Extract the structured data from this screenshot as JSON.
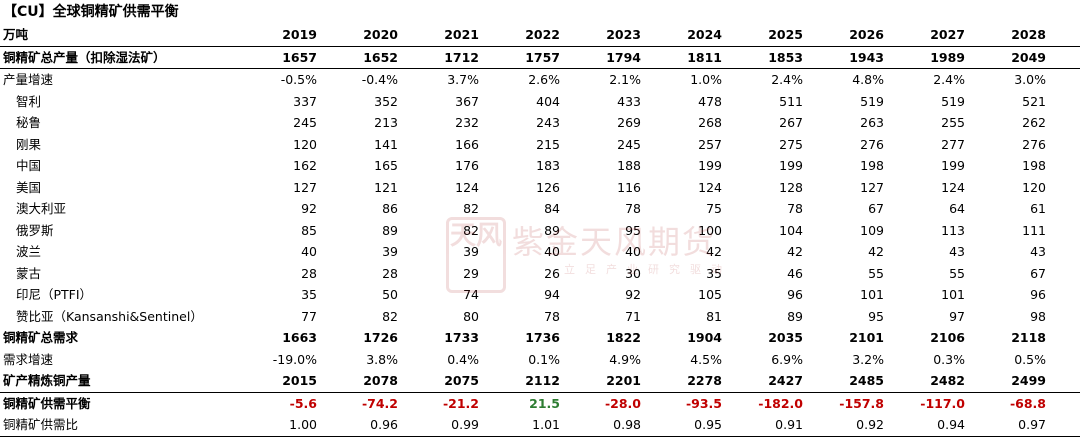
{
  "title": "【CU】全球铜精矿供需平衡",
  "unit_label": "万吨",
  "years": [
    "2019",
    "2020",
    "2021",
    "2022",
    "2023",
    "2024",
    "2025",
    "2026",
    "2027",
    "2028"
  ],
  "rows": [
    {
      "label": "铜精矿总产量（扣除湿法矿）",
      "style": "bold",
      "values": [
        "1657",
        "1652",
        "1712",
        "1757",
        "1794",
        "1811",
        "1853",
        "1943",
        "1989",
        "2049"
      ]
    },
    {
      "label": "产量增速",
      "style": "plain",
      "values": [
        "-0.5%",
        "-0.4%",
        "3.7%",
        "2.6%",
        "2.1%",
        "1.0%",
        "2.4%",
        "4.8%",
        "2.4%",
        "3.0%"
      ]
    },
    {
      "label": "智利",
      "style": "indent",
      "values": [
        "337",
        "352",
        "367",
        "404",
        "433",
        "478",
        "511",
        "519",
        "519",
        "521"
      ]
    },
    {
      "label": "秘鲁",
      "style": "indent",
      "values": [
        "245",
        "213",
        "232",
        "243",
        "269",
        "268",
        "267",
        "263",
        "255",
        "262"
      ]
    },
    {
      "label": "刚果",
      "style": "indent",
      "values": [
        "120",
        "141",
        "166",
        "215",
        "245",
        "257",
        "275",
        "276",
        "277",
        "276"
      ]
    },
    {
      "label": "中国",
      "style": "indent",
      "values": [
        "162",
        "165",
        "176",
        "183",
        "188",
        "199",
        "199",
        "198",
        "199",
        "198"
      ]
    },
    {
      "label": "美国",
      "style": "indent",
      "values": [
        "127",
        "121",
        "124",
        "126",
        "116",
        "124",
        "128",
        "127",
        "124",
        "120"
      ]
    },
    {
      "label": "澳大利亚",
      "style": "indent",
      "values": [
        "92",
        "86",
        "82",
        "84",
        "78",
        "75",
        "78",
        "67",
        "64",
        "61"
      ]
    },
    {
      "label": "俄罗斯",
      "style": "indent",
      "values": [
        "85",
        "89",
        "82",
        "89",
        "95",
        "100",
        "104",
        "109",
        "113",
        "111"
      ]
    },
    {
      "label": "波兰",
      "style": "indent",
      "values": [
        "40",
        "39",
        "39",
        "40",
        "40",
        "42",
        "42",
        "42",
        "43",
        "43"
      ]
    },
    {
      "label": "蒙古",
      "style": "indent",
      "values": [
        "28",
        "28",
        "29",
        "26",
        "30",
        "35",
        "46",
        "55",
        "55",
        "67"
      ]
    },
    {
      "label": "印尼（PTFI）",
      "style": "indent",
      "values": [
        "35",
        "50",
        "74",
        "94",
        "92",
        "105",
        "96",
        "101",
        "101",
        "96"
      ]
    },
    {
      "label": "赞比亚（Kansanshi&Sentinel）",
      "style": "indent",
      "values": [
        "77",
        "82",
        "80",
        "78",
        "71",
        "81",
        "89",
        "95",
        "97",
        "98"
      ]
    },
    {
      "label": "铜精矿总需求",
      "style": "bold",
      "values": [
        "1663",
        "1726",
        "1733",
        "1736",
        "1822",
        "1904",
        "2035",
        "2101",
        "2106",
        "2118"
      ]
    },
    {
      "label": "需求增速",
      "style": "plain",
      "values": [
        "-19.0%",
        "3.8%",
        "0.4%",
        "0.1%",
        "4.9%",
        "4.5%",
        "6.9%",
        "3.2%",
        "0.3%",
        "0.5%"
      ]
    },
    {
      "label": "矿产精炼铜产量",
      "style": "bold",
      "values": [
        "2015",
        "2078",
        "2075",
        "2112",
        "2201",
        "2278",
        "2427",
        "2485",
        "2482",
        "2499"
      ]
    },
    {
      "label": "铜精矿供需平衡",
      "style": "balance",
      "values": [
        "-5.6",
        "-74.2",
        "-21.2",
        "21.5",
        "-28.0",
        "-93.5",
        "-182.0",
        "-157.8",
        "-117.0",
        "-68.8"
      ]
    },
    {
      "label": "铜精矿供需比",
      "style": "plain",
      "values": [
        "1.00",
        "0.96",
        "0.99",
        "1.01",
        "0.98",
        "0.95",
        "0.91",
        "0.92",
        "0.94",
        "0.97"
      ]
    }
  ],
  "watermark": {
    "seal": "天风",
    "text": "紫金天风期货",
    "sub": "立足产业研究驱动"
  },
  "colors": {
    "negative": "#c00000",
    "positive": "#2e7d32"
  }
}
